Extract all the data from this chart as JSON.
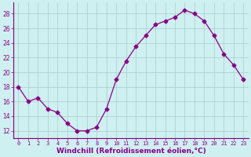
{
  "x": [
    0,
    1,
    2,
    3,
    4,
    5,
    6,
    7,
    8,
    9,
    10,
    11,
    12,
    13,
    14,
    15,
    16,
    17,
    18,
    19,
    20,
    21,
    22,
    23
  ],
  "y": [
    18,
    16,
    16.5,
    15,
    14.5,
    13,
    12,
    12,
    12.5,
    15,
    19,
    21.5,
    23.5,
    25,
    26.5,
    27,
    27.5,
    28.5,
    28,
    27,
    25,
    22.5,
    21,
    19
  ],
  "line_color": "#880088",
  "marker": "D",
  "marker_size": 2.5,
  "bg_color": "#cff0f0",
  "grid_color": "#aacccc",
  "xlabel": "Windchill (Refroidissement éolien,°C)",
  "xlabel_fontsize": 6.5,
  "yticks": [
    12,
    14,
    16,
    18,
    20,
    22,
    24,
    26,
    28
  ],
  "ylim": [
    11,
    29.5
  ],
  "xlim": [
    -0.5,
    23.5
  ],
  "tick_fontsize": 5.0,
  "ytick_fontsize": 5.5
}
